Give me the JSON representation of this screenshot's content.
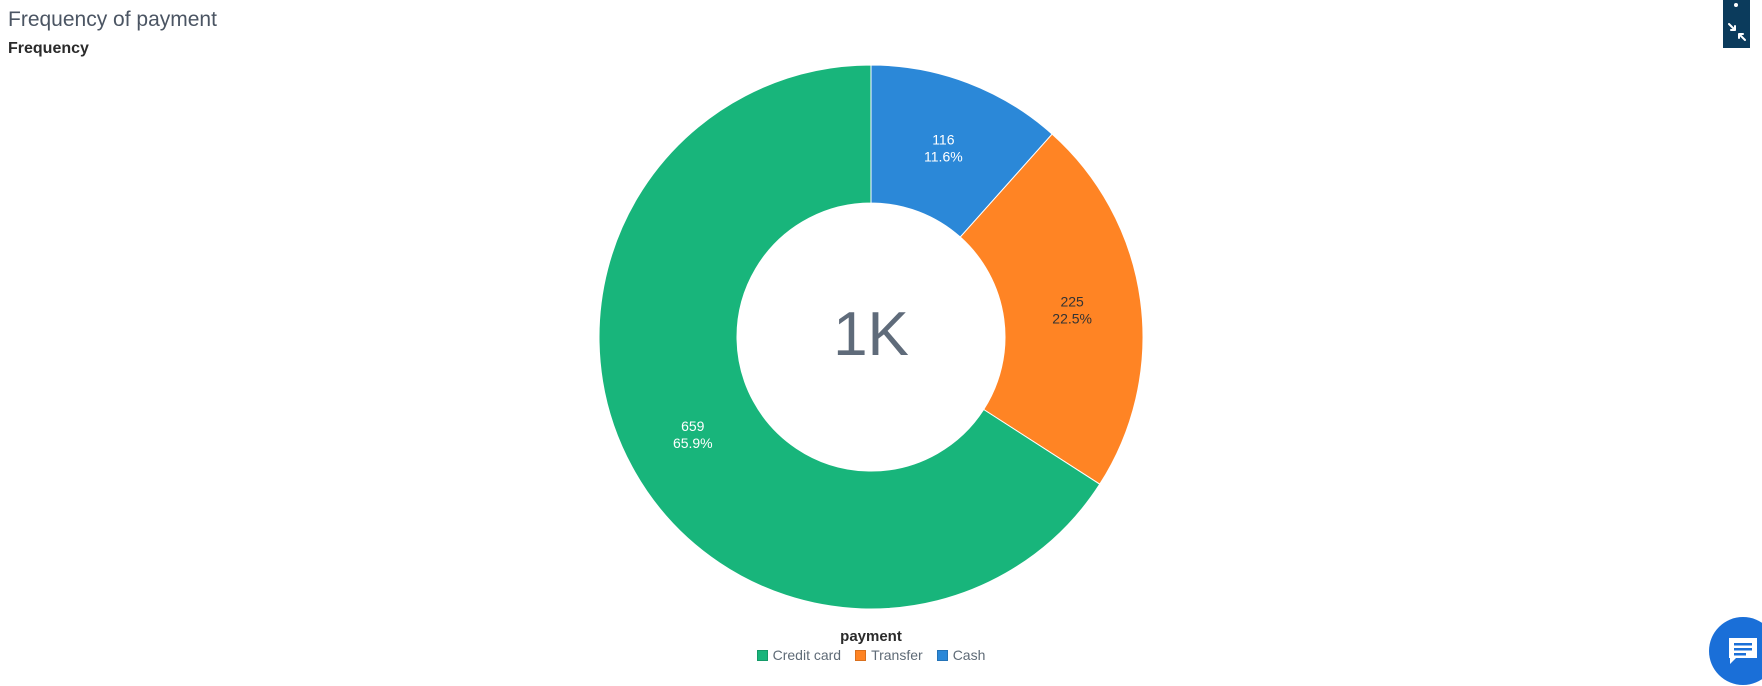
{
  "header": {
    "title": "Frequency of payment",
    "subtitle": "Frequency"
  },
  "chart_data": {
    "type": "pie",
    "variant": "donut",
    "center_label": "1K",
    "legend_title": "payment",
    "legend_position": "bottom-center",
    "slices": [
      {
        "label": "Cash",
        "value": 116,
        "percent": "11.6%",
        "value_text": "116",
        "color": "#2b88d8",
        "label_color": "#ffffff"
      },
      {
        "label": "Transfer",
        "value": 225,
        "percent": "22.5%",
        "value_text": "225",
        "color": "#ff8424",
        "label_color": "#333333"
      },
      {
        "label": "Credit card",
        "value": 659,
        "percent": "65.9%",
        "value_text": "659",
        "color": "#18b57b",
        "label_color": "#ffffff"
      }
    ],
    "legend_order": [
      "Credit card",
      "Transfer",
      "Cash"
    ]
  },
  "controls": {
    "collapse_icon": "collapse-arrows-icon",
    "chat_icon": "chat-icon"
  }
}
